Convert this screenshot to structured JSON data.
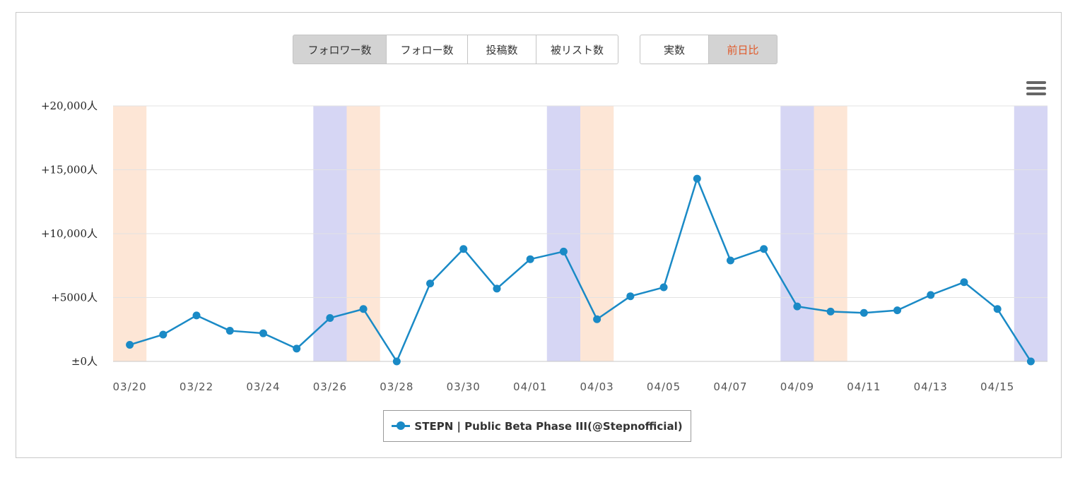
{
  "toolbar": {
    "metric_buttons": [
      {
        "label": "フォロワー数",
        "active": true
      },
      {
        "label": "フォロー数",
        "active": false
      },
      {
        "label": "投稿数",
        "active": false
      },
      {
        "label": "被リスト数",
        "active": false
      }
    ],
    "mode_buttons": [
      {
        "label": "実数",
        "active": false
      },
      {
        "label": "前日比",
        "active": true
      }
    ]
  },
  "colors": {
    "line": "#1a8ac6",
    "saturday_band": "#d6d6f4",
    "sunday_band": "#fde6d6",
    "accent_text": "#e05a2a",
    "grid": "#e3e3e3"
  },
  "menu_icon": "hamburger-menu-icon",
  "chart_data": {
    "type": "line",
    "title": "",
    "xlabel": "",
    "ylabel": "",
    "ylim": [
      0,
      20000
    ],
    "yticks": [
      {
        "value": 0,
        "label": "±0人"
      },
      {
        "value": 5000,
        "label": "+5000人"
      },
      {
        "value": 10000,
        "label": "+10,000人"
      },
      {
        "value": 15000,
        "label": "+15,000人"
      },
      {
        "value": 20000,
        "label": "+20,000人"
      }
    ],
    "x": [
      "03/20",
      "03/21",
      "03/22",
      "03/23",
      "03/24",
      "03/25",
      "03/26",
      "03/27",
      "03/28",
      "03/29",
      "03/30",
      "03/31",
      "04/01",
      "04/02",
      "04/03",
      "04/04",
      "04/05",
      "04/06",
      "04/07",
      "04/08",
      "04/09",
      "04/10",
      "04/11",
      "04/12",
      "04/13",
      "04/14",
      "04/15",
      "04/16"
    ],
    "xtick_labels": [
      "03/20",
      "03/22",
      "03/24",
      "03/26",
      "03/28",
      "03/30",
      "04/01",
      "04/03",
      "04/05",
      "04/07",
      "04/09",
      "04/11",
      "04/13",
      "04/15"
    ],
    "series": [
      {
        "name": "STEPN | Public Beta Phase III(@Stepnofficial)",
        "values": [
          1300,
          2100,
          3600,
          2400,
          2200,
          1000,
          3400,
          4100,
          0,
          6100,
          8800,
          5700,
          8000,
          8600,
          3300,
          5100,
          5800,
          14300,
          7900,
          8800,
          4300,
          3900,
          3800,
          4000,
          5200,
          6200,
          4100,
          0
        ]
      }
    ],
    "saturday_bands": [
      "03/26",
      "04/02",
      "04/09",
      "04/16"
    ],
    "sunday_bands": [
      "03/20",
      "03/27",
      "04/03",
      "04/10"
    ],
    "grid": true,
    "legend_position": "bottom-center"
  }
}
